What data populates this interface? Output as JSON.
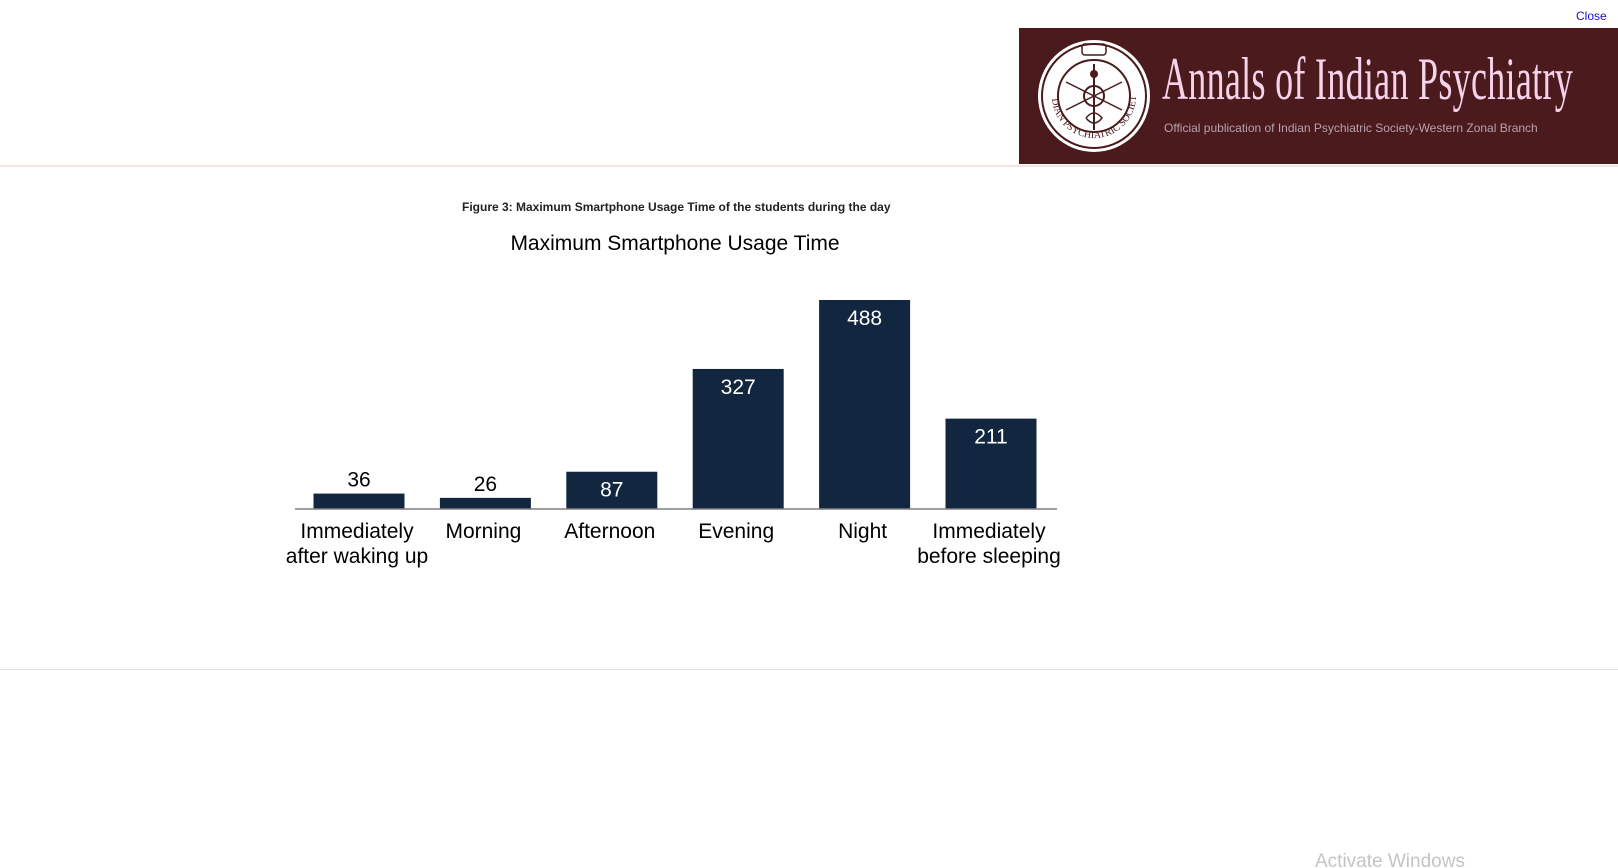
{
  "close_label": "Close",
  "banner": {
    "title": "Annals of Indian Psychiatry",
    "subtitle": "Official publication of  Indian Psychiatric Society-Western Zonal Branch",
    "seal_text": "INDIAN PSYCHIATRIC SOCIETY",
    "background_color": "#4a1a1c",
    "title_color": "#f7d2ea"
  },
  "figure_caption": "Figure 3: Maximum Smartphone Usage Time of the students during the day",
  "chart_data": {
    "type": "bar",
    "title": "Maximum Smartphone Usage Time",
    "categories": [
      [
        "Immediately",
        "after waking up"
      ],
      [
        "Morning"
      ],
      [
        "Afternoon"
      ],
      [
        "Evening"
      ],
      [
        "Night"
      ],
      [
        "Immediately",
        "before sleeping"
      ]
    ],
    "values": [
      36,
      26,
      87,
      327,
      488,
      211
    ],
    "ylim": [
      0,
      488
    ],
    "bar_color": "#13263f",
    "grid": false,
    "legend": "none"
  },
  "watermark": "Activate Windows"
}
